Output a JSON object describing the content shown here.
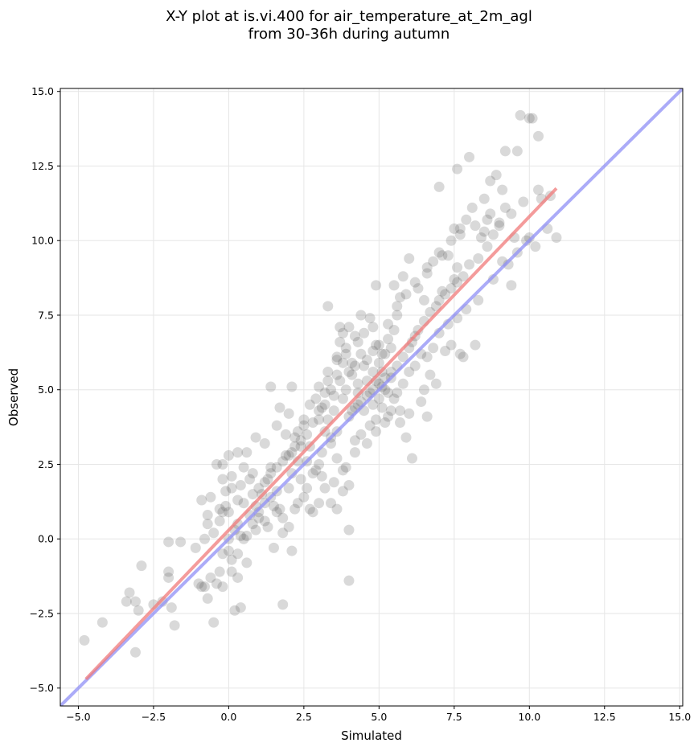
{
  "chart_data": {
    "type": "scatter",
    "title_lines": [
      "X-Y plot at is.vi.400 for air_temperature_at_2m_agl",
      "from 30-36h during autumn"
    ],
    "xlabel": "Simulated",
    "ylabel": "Observed",
    "xlim": [
      -5.6,
      15.1
    ],
    "ylim": [
      -5.6,
      15.1
    ],
    "xticks": [
      -5.0,
      -2.5,
      0.0,
      2.5,
      5.0,
      7.5,
      10.0,
      12.5,
      15.0
    ],
    "yticks": [
      -5.0,
      -2.5,
      0.0,
      2.5,
      5.0,
      7.5,
      10.0,
      12.5,
      15.0
    ],
    "xtick_labels": [
      "−5.0",
      "−2.5",
      "0.0",
      "2.5",
      "5.0",
      "7.5",
      "10.0",
      "12.5",
      "15.0"
    ],
    "ytick_labels": [
      "−5.0",
      "−2.5",
      "0.0",
      "2.5",
      "5.0",
      "7.5",
      "10.0",
      "12.5",
      "15.0"
    ],
    "grid": true,
    "points": [
      [
        -4.8,
        -3.4
      ],
      [
        -4.2,
        -2.8
      ],
      [
        -3.3,
        -1.8
      ],
      [
        -3.4,
        -2.1
      ],
      [
        -3.1,
        -2.1
      ],
      [
        -3.0,
        -2.4
      ],
      [
        -3.1,
        -3.8
      ],
      [
        -2.9,
        -0.9
      ],
      [
        -2.5,
        -2.2
      ],
      [
        -2.2,
        -2.1
      ],
      [
        -2.0,
        -1.1
      ],
      [
        -2.0,
        -1.3
      ],
      [
        -1.9,
        -2.3
      ],
      [
        -1.8,
        -2.9
      ],
      [
        -1.6,
        -0.1
      ],
      [
        -2.0,
        -0.1
      ],
      [
        -1.1,
        -0.3
      ],
      [
        -1.0,
        -1.5
      ],
      [
        -0.9,
        -1.6
      ],
      [
        -0.7,
        -2.0
      ],
      [
        -0.5,
        -2.8
      ],
      [
        -0.6,
        -1.3
      ],
      [
        -0.4,
        -1.5
      ],
      [
        -0.8,
        -1.6
      ],
      [
        -0.2,
        -1.6
      ],
      [
        -0.3,
        -1.1
      ],
      [
        0.1,
        -1.1
      ],
      [
        0.2,
        -2.4
      ],
      [
        0.4,
        -2.3
      ],
      [
        0.3,
        -1.3
      ],
      [
        0.6,
        -0.8
      ],
      [
        -0.2,
        -0.5
      ],
      [
        0.0,
        -0.4
      ],
      [
        0.1,
        -0.7
      ],
      [
        0.3,
        -0.5
      ],
      [
        0.5,
        0.0
      ],
      [
        0.4,
        0.1
      ],
      [
        0.3,
        0.5
      ],
      [
        -0.7,
        0.5
      ],
      [
        -0.8,
        0.0
      ],
      [
        -0.7,
        0.8
      ],
      [
        -0.9,
        1.3
      ],
      [
        -0.6,
        1.4
      ],
      [
        -0.3,
        1.0
      ],
      [
        0.0,
        0.9
      ],
      [
        -0.2,
        0.9
      ],
      [
        0.3,
        1.3
      ],
      [
        0.5,
        1.2
      ],
      [
        0.1,
        1.7
      ],
      [
        -0.1,
        1.6
      ],
      [
        0.1,
        2.1
      ],
      [
        -0.2,
        2.0
      ],
      [
        -0.4,
        2.5
      ],
      [
        -0.2,
        2.5
      ],
      [
        0.0,
        2.8
      ],
      [
        0.3,
        2.9
      ],
      [
        0.5,
        2.4
      ],
      [
        0.8,
        2.2
      ],
      [
        0.6,
        2.9
      ],
      [
        0.9,
        3.4
      ],
      [
        1.2,
        3.2
      ],
      [
        1.4,
        2.4
      ],
      [
        1.3,
        2.0
      ],
      [
        1.1,
        1.5
      ],
      [
        0.9,
        1.1
      ],
      [
        0.7,
        0.8
      ],
      [
        1.0,
        0.7
      ],
      [
        0.9,
        0.3
      ],
      [
        1.3,
        0.4
      ],
      [
        1.5,
        1.1
      ],
      [
        1.7,
        1.0
      ],
      [
        1.6,
        0.9
      ],
      [
        1.8,
        0.7
      ],
      [
        1.8,
        0.2
      ],
      [
        2.0,
        0.4
      ],
      [
        2.2,
        1.0
      ],
      [
        2.3,
        1.2
      ],
      [
        2.0,
        1.7
      ],
      [
        2.1,
        2.2
      ],
      [
        2.4,
        2.0
      ],
      [
        2.3,
        2.6
      ],
      [
        2.1,
        2.9
      ],
      [
        1.9,
        3.5
      ],
      [
        1.7,
        4.4
      ],
      [
        1.4,
        5.1
      ],
      [
        1.6,
        3.8
      ],
      [
        2.0,
        4.2
      ],
      [
        2.1,
        5.1
      ],
      [
        2.3,
        3.6
      ],
      [
        2.5,
        3.8
      ],
      [
        2.4,
        3.1
      ],
      [
        2.7,
        3.1
      ],
      [
        2.6,
        2.6
      ],
      [
        2.9,
        2.3
      ],
      [
        3.1,
        2.1
      ],
      [
        3.2,
        1.7
      ],
      [
        3.0,
        1.2
      ],
      [
        2.8,
        0.9
      ],
      [
        3.4,
        1.2
      ],
      [
        3.6,
        1.0
      ],
      [
        3.8,
        1.6
      ],
      [
        4.0,
        1.8
      ],
      [
        3.9,
        2.4
      ],
      [
        3.6,
        2.7
      ],
      [
        3.4,
        3.2
      ],
      [
        3.2,
        3.6
      ],
      [
        3.0,
        4.0
      ],
      [
        3.1,
        4.4
      ],
      [
        2.9,
        4.7
      ],
      [
        3.2,
        4.9
      ],
      [
        3.3,
        5.3
      ],
      [
        3.3,
        7.8
      ],
      [
        3.6,
        6.1
      ],
      [
        3.7,
        6.6
      ],
      [
        3.7,
        7.1
      ],
      [
        3.8,
        6.9
      ],
      [
        4.0,
        7.1
      ],
      [
        3.9,
        6.2
      ],
      [
        4.1,
        5.9
      ],
      [
        4.3,
        6.6
      ],
      [
        4.5,
        6.9
      ],
      [
        4.4,
        7.5
      ],
      [
        4.7,
        7.4
      ],
      [
        4.8,
        7.1
      ],
      [
        4.9,
        6.5
      ],
      [
        5.1,
        6.2
      ],
      [
        5.3,
        6.7
      ],
      [
        5.4,
        6.4
      ],
      [
        5.5,
        7.0
      ],
      [
        5.6,
        7.5
      ],
      [
        5.7,
        8.1
      ],
      [
        5.5,
        8.5
      ],
      [
        4.9,
        8.5
      ],
      [
        5.8,
        8.8
      ],
      [
        6.0,
        9.4
      ],
      [
        6.3,
        8.4
      ],
      [
        6.5,
        8.0
      ],
      [
        6.6,
        9.1
      ],
      [
        6.8,
        9.3
      ],
      [
        7.0,
        8.0
      ],
      [
        7.1,
        8.3
      ],
      [
        7.0,
        9.6
      ],
      [
        7.3,
        9.5
      ],
      [
        7.5,
        8.7
      ],
      [
        7.6,
        9.1
      ],
      [
        7.5,
        10.4
      ],
      [
        7.7,
        10.4
      ],
      [
        7.9,
        10.7
      ],
      [
        8.1,
        11.1
      ],
      [
        8.5,
        11.4
      ],
      [
        8.9,
        12.2
      ],
      [
        8.7,
        12.0
      ],
      [
        9.1,
        11.7
      ],
      [
        9.2,
        11.1
      ],
      [
        9.0,
        10.6
      ],
      [
        8.7,
        10.9
      ],
      [
        8.5,
        10.3
      ],
      [
        8.4,
        10.1
      ],
      [
        9.5,
        10.1
      ],
      [
        9.9,
        10.0
      ],
      [
        9.6,
        9.6
      ],
      [
        9.3,
        9.2
      ],
      [
        9.4,
        8.5
      ],
      [
        10.2,
        9.8
      ],
      [
        10.0,
        10.1
      ],
      [
        10.6,
        10.4
      ],
      [
        10.9,
        10.1
      ],
      [
        10.3,
        11.7
      ],
      [
        9.7,
        14.2
      ],
      [
        10.0,
        14.1
      ],
      [
        10.1,
        14.1
      ],
      [
        10.3,
        13.5
      ],
      [
        9.2,
        13.0
      ],
      [
        9.6,
        13.0
      ],
      [
        8.0,
        12.8
      ],
      [
        7.6,
        12.4
      ],
      [
        7.0,
        11.8
      ],
      [
        8.2,
        6.5
      ],
      [
        7.8,
        6.1
      ],
      [
        7.7,
        6.2
      ],
      [
        7.4,
        6.5
      ],
      [
        7.3,
        7.2
      ],
      [
        7.0,
        6.9
      ],
      [
        6.8,
        6.4
      ],
      [
        6.6,
        6.1
      ],
      [
        6.9,
        5.2
      ],
      [
        6.5,
        5.0
      ],
      [
        6.6,
        4.1
      ],
      [
        6.1,
        2.7
      ],
      [
        5.9,
        3.4
      ],
      [
        5.7,
        4.3
      ],
      [
        5.5,
        4.7
      ],
      [
        5.3,
        4.9
      ],
      [
        5.1,
        5.1
      ],
      [
        5.0,
        4.7
      ],
      [
        4.8,
        4.5
      ],
      [
        4.5,
        4.3
      ],
      [
        4.2,
        4.4
      ],
      [
        4.0,
        4.1
      ],
      [
        3.8,
        4.7
      ],
      [
        3.5,
        4.3
      ],
      [
        3.3,
        4.0
      ],
      [
        3.6,
        3.6
      ],
      [
        3.4,
        3.4
      ],
      [
        3.1,
        2.9
      ],
      [
        3.0,
        2.5
      ],
      [
        2.8,
        2.2
      ],
      [
        2.6,
        1.7
      ],
      [
        2.5,
        1.4
      ],
      [
        2.7,
        1.0
      ],
      [
        3.5,
        1.9
      ],
      [
        3.8,
        2.3
      ],
      [
        4.2,
        2.9
      ],
      [
        4.6,
        3.2
      ],
      [
        4.9,
        3.6
      ],
      [
        5.2,
        3.9
      ],
      [
        5.4,
        4.3
      ],
      [
        5.6,
        4.9
      ],
      [
        5.8,
        5.2
      ],
      [
        6.0,
        5.6
      ],
      [
        6.2,
        5.8
      ],
      [
        6.4,
        6.2
      ],
      [
        6.1,
        6.6
      ],
      [
        6.3,
        7.0
      ],
      [
        6.5,
        7.3
      ],
      [
        6.7,
        7.6
      ],
      [
        6.9,
        7.8
      ],
      [
        7.2,
        8.2
      ],
      [
        7.4,
        8.4
      ],
      [
        7.6,
        8.6
      ],
      [
        7.8,
        8.8
      ],
      [
        8.0,
        9.2
      ],
      [
        8.3,
        9.4
      ],
      [
        8.6,
        9.8
      ],
      [
        8.8,
        10.2
      ],
      [
        9.0,
        10.5
      ],
      [
        9.4,
        10.9
      ],
      [
        9.8,
        11.3
      ],
      [
        10.4,
        11.4
      ],
      [
        10.7,
        11.5
      ],
      [
        4.0,
        0.3
      ],
      [
        4.0,
        -1.4
      ],
      [
        1.8,
        -2.2
      ],
      [
        2.1,
        -0.4
      ],
      [
        1.5,
        -0.3
      ],
      [
        1.2,
        0.6
      ],
      [
        4.3,
        4.9
      ],
      [
        4.6,
        5.3
      ],
      [
        4.8,
        5.6
      ],
      [
        5.0,
        5.9
      ],
      [
        5.2,
        6.2
      ],
      [
        4.3,
        5.2
      ],
      [
        4.1,
        5.5
      ],
      [
        3.9,
        5.0
      ],
      [
        3.7,
        5.3
      ],
      [
        3.5,
        4.8
      ],
      [
        4.7,
        4.9
      ],
      [
        4.9,
        5.3
      ],
      [
        5.1,
        5.6
      ],
      [
        4.5,
        5.8
      ],
      [
        4.4,
        6.2
      ],
      [
        4.6,
        6.0
      ],
      [
        4.8,
        6.3
      ],
      [
        5.0,
        6.5
      ],
      [
        5.2,
        5.0
      ],
      [
        5.4,
        5.4
      ],
      [
        5.6,
        5.8
      ],
      [
        5.8,
        6.1
      ],
      [
        6.0,
        6.4
      ],
      [
        6.2,
        6.8
      ],
      [
        4.2,
        5.8
      ],
      [
        4.0,
        5.6
      ],
      [
        3.8,
        5.9
      ],
      [
        3.6,
        5.5
      ],
      [
        3.4,
        5.0
      ],
      [
        3.2,
        4.5
      ],
      [
        3.0,
        4.3
      ],
      [
        2.8,
        3.9
      ],
      [
        2.6,
        3.5
      ],
      [
        2.4,
        3.3
      ],
      [
        2.2,
        3.1
      ],
      [
        2.0,
        2.8
      ],
      [
        1.8,
        2.6
      ],
      [
        1.6,
        2.4
      ],
      [
        1.4,
        2.2
      ],
      [
        1.2,
        1.9
      ],
      [
        1.0,
        1.7
      ],
      [
        0.8,
        1.5
      ],
      [
        4.4,
        4.6
      ],
      [
        4.6,
        4.8
      ],
      [
        4.8,
        5.0
      ],
      [
        5.0,
        5.2
      ],
      [
        5.2,
        5.4
      ],
      [
        5.4,
        5.6
      ],
      [
        4.1,
        4.3
      ],
      [
        4.3,
        4.5
      ],
      [
        7.2,
        6.3
      ],
      [
        7.6,
        7.4
      ],
      [
        7.9,
        7.7
      ],
      [
        8.3,
        8.0
      ],
      [
        8.8,
        8.7
      ],
      [
        9.1,
        9.3
      ],
      [
        6.7,
        5.5
      ],
      [
        6.4,
        4.6
      ],
      [
        6.0,
        4.2
      ],
      [
        5.7,
        3.9
      ],
      [
        5.3,
        4.1
      ],
      [
        5.1,
        4.4
      ],
      [
        4.9,
        4.0
      ],
      [
        4.7,
        3.8
      ],
      [
        4.4,
        3.5
      ],
      [
        4.2,
        3.3
      ],
      [
        0.6,
        0.1
      ],
      [
        0.8,
        0.5
      ],
      [
        1.0,
        0.9
      ],
      [
        1.2,
        1.2
      ],
      [
        1.4,
        1.4
      ],
      [
        1.6,
        1.6
      ],
      [
        0.2,
        0.3
      ],
      [
        0.0,
        0.0
      ],
      [
        -0.5,
        0.2
      ],
      [
        -0.3,
        0.6
      ],
      [
        -0.1,
        1.1
      ],
      [
        0.4,
        1.8
      ],
      [
        0.7,
        2.0
      ],
      [
        1.9,
        2.8
      ],
      [
        2.2,
        3.4
      ],
      [
        2.5,
        4.0
      ],
      [
        2.7,
        4.5
      ],
      [
        3.0,
        5.1
      ],
      [
        3.3,
        5.6
      ],
      [
        3.6,
        6.0
      ],
      [
        3.9,
        6.4
      ],
      [
        4.2,
        6.8
      ],
      [
        5.3,
        7.2
      ],
      [
        5.6,
        7.8
      ],
      [
        5.9,
        8.2
      ],
      [
        6.2,
        8.6
      ],
      [
        6.6,
        8.9
      ],
      [
        7.1,
        9.5
      ],
      [
        7.4,
        10.0
      ],
      [
        7.7,
        10.2
      ],
      [
        8.2,
        10.5
      ],
      [
        8.6,
        10.7
      ]
    ],
    "points_color": "#505050",
    "fit_line": {
      "color": "#f07a7a",
      "from": [
        -4.75,
        -4.7
      ],
      "to": [
        10.9,
        11.75
      ]
    },
    "identity_line": {
      "color": "#8f8ff5",
      "from": [
        -5.6,
        -5.6
      ],
      "to": [
        15.1,
        15.1
      ]
    }
  }
}
